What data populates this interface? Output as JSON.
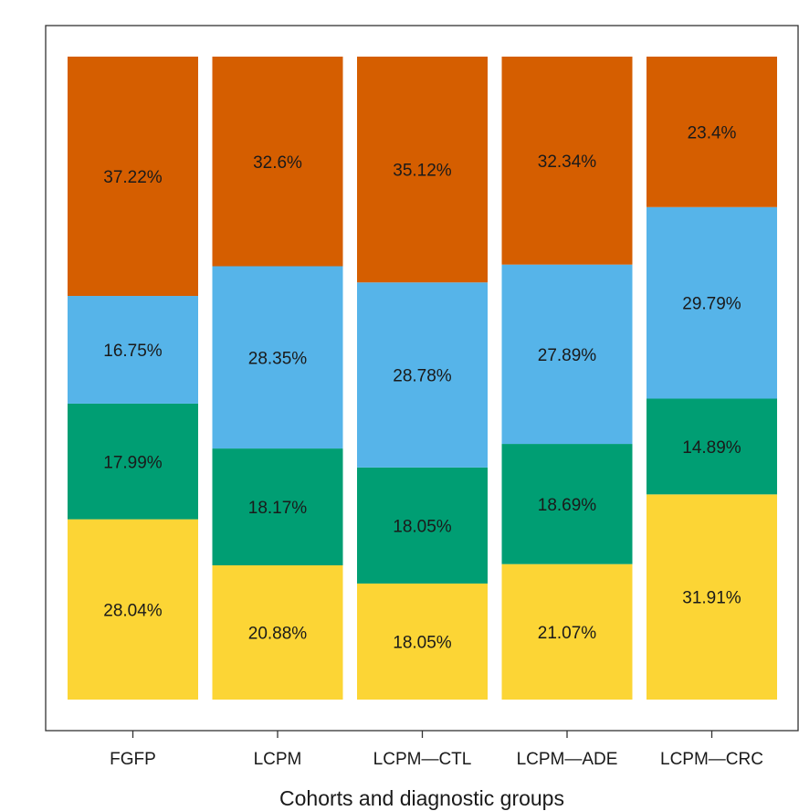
{
  "chart_data": {
    "type": "bar",
    "stacked": true,
    "categories": [
      "FGFP",
      "LCPM",
      "LCPM—CTL",
      "LCPM—ADE",
      "LCPM—CRC"
    ],
    "series": [
      {
        "values": [
          28.04,
          20.88,
          18.05,
          21.07,
          31.91
        ],
        "labels": [
          "28.04%",
          "20.88%",
          "18.05%",
          "21.07%",
          "31.91%"
        ],
        "color": "#FCD535"
      },
      {
        "values": [
          17.99,
          18.17,
          18.05,
          18.69,
          14.89
        ],
        "labels": [
          "17.99%",
          "18.17%",
          "18.05%",
          "18.69%",
          "14.89%"
        ],
        "color": "#009E73"
      },
      {
        "values": [
          16.75,
          28.35,
          28.78,
          27.89,
          29.79
        ],
        "labels": [
          "16.75%",
          "28.35%",
          "28.78%",
          "27.89%",
          "29.79%"
        ],
        "color": "#56B4E9"
      },
      {
        "values": [
          37.22,
          32.6,
          35.12,
          32.34,
          23.4
        ],
        "labels": [
          "37.22%",
          "32.6%",
          "35.12%",
          "32.34%",
          "23.4%"
        ],
        "color": "#D55E00"
      }
    ],
    "xlabel": "Cohorts and diagnostic groups",
    "ylabel": "",
    "ylim": [
      0,
      100
    ],
    "grid": false,
    "legend": "none"
  }
}
